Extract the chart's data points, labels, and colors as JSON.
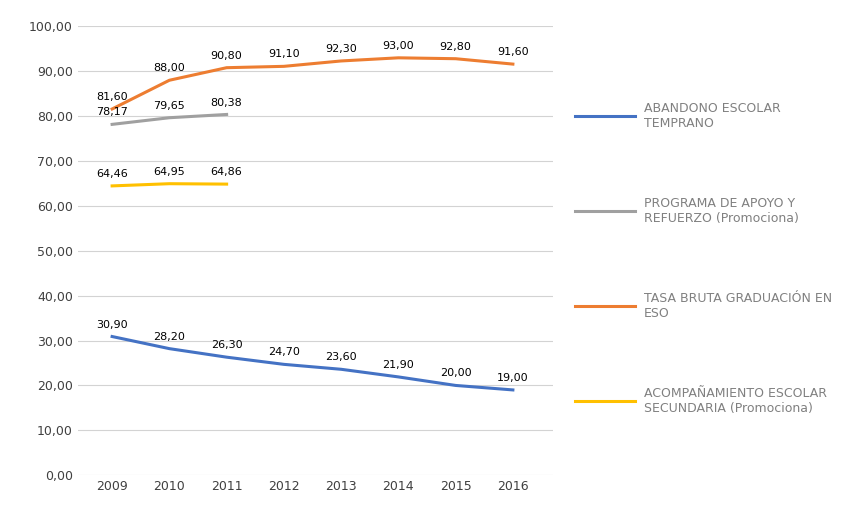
{
  "years": [
    2009,
    2010,
    2011,
    2012,
    2013,
    2014,
    2015,
    2016
  ],
  "abandono": [
    30.9,
    28.2,
    26.3,
    24.7,
    23.6,
    21.9,
    20.0,
    19.0
  ],
  "programa_apoyo": [
    78.17,
    79.65,
    80.38,
    null,
    null,
    null,
    null,
    null
  ],
  "tasa_bruta": [
    81.6,
    88.0,
    90.8,
    91.1,
    92.3,
    93.0,
    92.8,
    91.6
  ],
  "acompanamiento": [
    64.46,
    64.95,
    64.86,
    null,
    null,
    null,
    null,
    null
  ],
  "abandono_color": "#4472C4",
  "programa_color": "#A0A0A0",
  "tasa_color": "#ED7D31",
  "acompanamiento_color": "#FFC000",
  "legend_text_color": "#808080",
  "ylim": [
    0,
    100
  ],
  "yticks": [
    0,
    10,
    20,
    30,
    40,
    50,
    60,
    70,
    80,
    90,
    100
  ],
  "ytick_labels": [
    "0,00",
    "10,00",
    "20,00",
    "30,00",
    "40,00",
    "50,00",
    "60,00",
    "70,00",
    "80,00",
    "90,00",
    "100,00"
  ],
  "background_color": "#FFFFFF",
  "grid_color": "#D3D3D3",
  "linewidth": 2.2,
  "fontsize_ticks": 9,
  "fontsize_annot": 8,
  "fontsize_legend": 9
}
